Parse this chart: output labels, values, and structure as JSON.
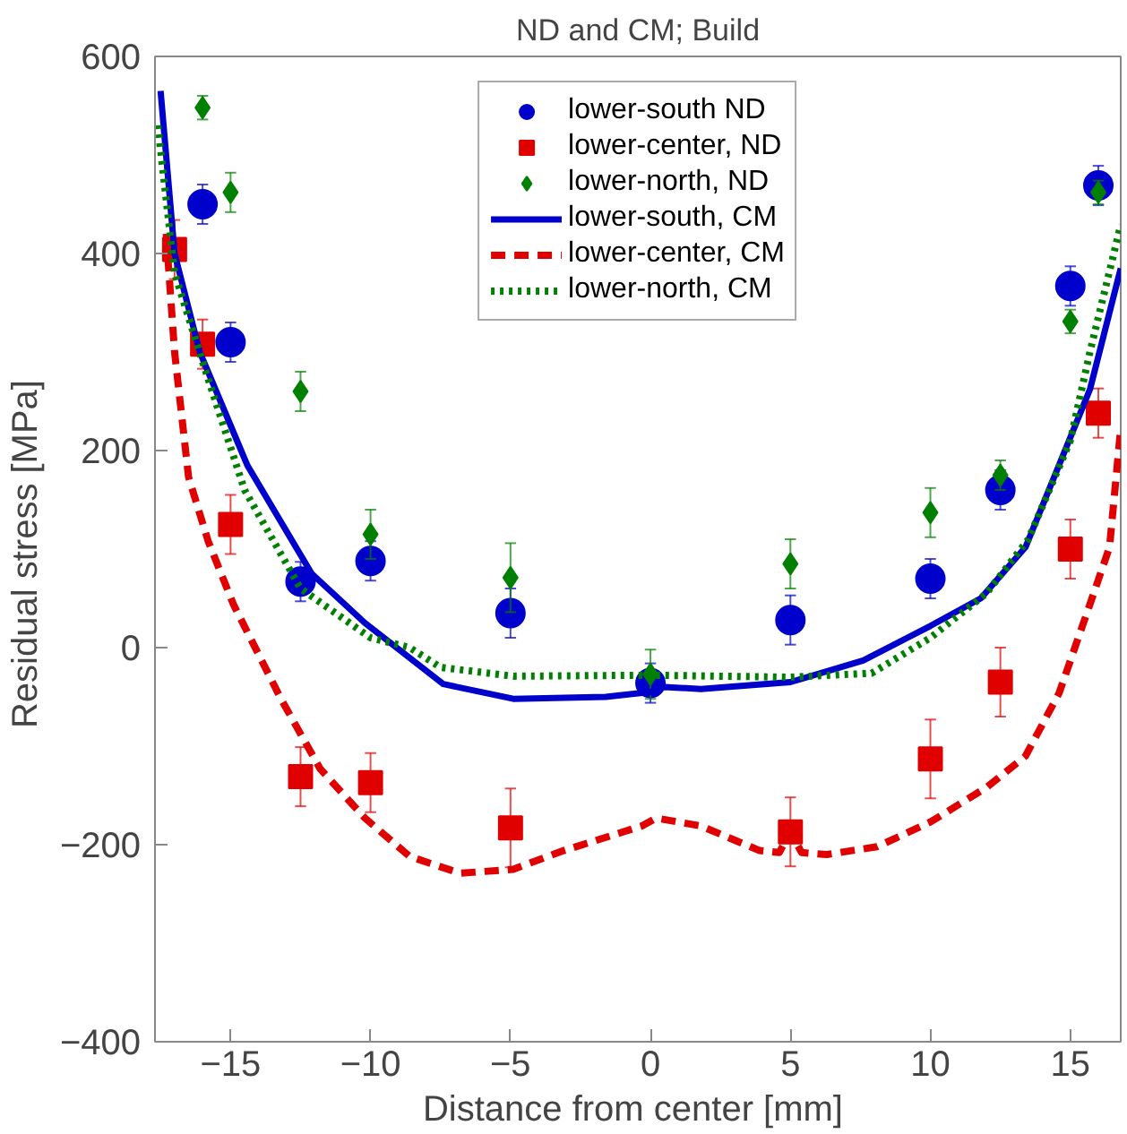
{
  "chart_data": {
    "type": "scatter",
    "title": "ND and CM; Build",
    "xlabel": "Distance from center  [mm]",
    "ylabel": "Residual stress  [MPa]",
    "xlim": [
      -17.7,
      16.8
    ],
    "ylim": [
      -400,
      600
    ],
    "xticks": [
      -15,
      -10,
      -5,
      0,
      5,
      10,
      15
    ],
    "yticks": [
      -400,
      -200,
      0,
      200,
      400,
      600
    ],
    "grid": false,
    "legend": "top",
    "series": [
      {
        "name": "lower-south ND",
        "marker": "circle",
        "color": "#0000cc",
        "x": [
          -16,
          -15,
          -12.5,
          -10,
          -5,
          0,
          5,
          10,
          12.5,
          15,
          16
        ],
        "values": [
          450,
          310,
          67,
          88,
          35,
          -36,
          28,
          70,
          160,
          367,
          469
        ],
        "errors": [
          20,
          20,
          20,
          20,
          25,
          20,
          25,
          20,
          20,
          20,
          20
        ]
      },
      {
        "name": "lower-center, ND",
        "marker": "square",
        "color": "#e00000",
        "x": [
          -17,
          -16,
          -15,
          -12.5,
          -10,
          -5,
          5,
          10,
          12.5,
          15,
          16
        ],
        "values": [
          404,
          308,
          125,
          -131,
          -137,
          -183,
          -187,
          -113,
          -35,
          100,
          238
        ],
        "errors": [
          30,
          25,
          30,
          30,
          30,
          40,
          35,
          40,
          35,
          30,
          25
        ]
      },
      {
        "name": "lower-north, ND",
        "marker": "diamond",
        "color": "#008000",
        "x": [
          -16,
          -15,
          -12.5,
          -10,
          -5,
          0,
          5,
          10,
          12.5,
          15,
          16
        ],
        "values": [
          548,
          462,
          260,
          115,
          71,
          -27,
          85,
          137,
          175,
          331,
          462
        ],
        "errors": [
          12,
          20,
          20,
          25,
          35,
          25,
          25,
          25,
          15,
          12,
          12
        ]
      },
      {
        "name": "lower-south, CM",
        "type": "line",
        "line_style": "solid",
        "color": "#0000cc",
        "x": [
          -17.5,
          -17,
          -16.1,
          -14.4,
          -12.1,
          -10.2,
          -7.4,
          -4.9,
          -1.6,
          0,
          0.5,
          1.8,
          5,
          7.6,
          10,
          11.8,
          13.4,
          15.7,
          16.8
        ],
        "values": [
          565,
          400,
          300,
          185,
          75,
          25,
          -37,
          -52,
          -50,
          -45,
          -40,
          -42,
          -35,
          -13,
          22,
          50,
          102,
          262,
          385
        ]
      },
      {
        "name": "lower-center, CM",
        "type": "line",
        "line_style": "dashed",
        "color": "#e00000",
        "x": [
          -17.3,
          -17,
          -16.5,
          -15.8,
          -14.9,
          -13.2,
          -11.8,
          -10.2,
          -8.6,
          -6.8,
          -4.9,
          -3.1,
          -0.3,
          0.2,
          1.8,
          3.9,
          4.6,
          5,
          5.4,
          6.3,
          8.1,
          10,
          12,
          13.4,
          14.6,
          15.7,
          16.4,
          16.8
        ],
        "values": [
          420,
          300,
          173,
          108,
          44,
          -52,
          -123,
          -173,
          -212,
          -229,
          -225,
          -206,
          -181,
          -173,
          -181,
          -206,
          -208,
          -187,
          -208,
          -210,
          -202,
          -177,
          -142,
          -110,
          -46,
          44,
          102,
          223
        ]
      },
      {
        "name": "lower-north, CM",
        "type": "line",
        "line_style": "dotted",
        "color": "#008000",
        "x": [
          -17.6,
          -17,
          -16,
          -14.5,
          -12.5,
          -10,
          -8.6,
          -7.5,
          -4.9,
          0,
          5,
          7.9,
          10,
          12,
          13.5,
          15,
          15.7,
          16.8
        ],
        "values": [
          530,
          380,
          290,
          160,
          60,
          10,
          0,
          -20,
          -29,
          -28,
          -30,
          -26,
          10,
          55,
          110,
          210,
          300,
          429
        ]
      }
    ]
  }
}
